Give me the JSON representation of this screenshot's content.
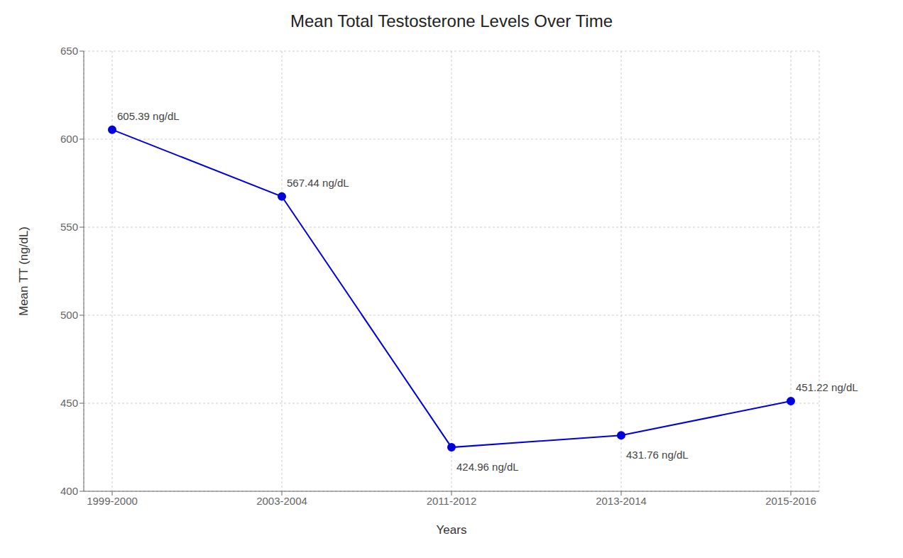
{
  "chart_data": {
    "type": "line",
    "title": "Mean Total Testosterone Levels Over Time",
    "xlabel": "Years",
    "ylabel": "Mean TT (ng/dL)",
    "categories": [
      "1999-2000",
      "2003-2004",
      "2011-2012",
      "2013-2014",
      "2015-2016"
    ],
    "values": [
      605.39,
      567.44,
      424.96,
      431.76,
      451.22
    ],
    "annotations": [
      "605.39 ng/dL",
      "567.44 ng/dL",
      "424.96 ng/dL",
      "431.76 ng/dL",
      "451.22 ng/dL"
    ],
    "color": "#0000dd",
    "marker": "circle",
    "ylim": [
      400,
      650
    ],
    "yticks": [
      400,
      450,
      500,
      550,
      600,
      650
    ],
    "grid": true
  }
}
